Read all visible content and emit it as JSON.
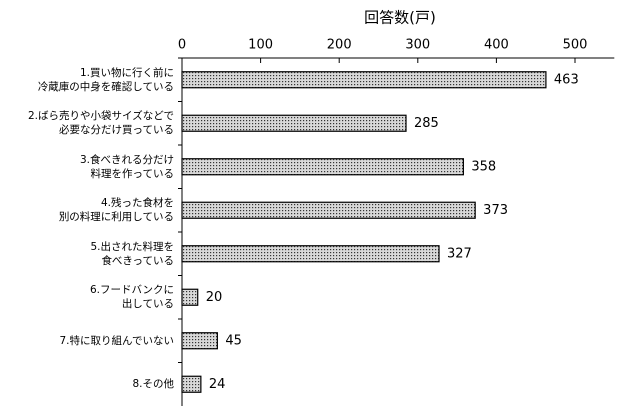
{
  "chart_data": {
    "type": "bar",
    "orientation": "horizontal",
    "x_label": "回答数(戸)",
    "categories": [
      "1.買い物に行く前に\n冷蔵庫の中身を確認している",
      "2.ばら売りや小袋サイズなどで\n必要な分だけ買っている",
      "3.食べきれる分だけ\n料理を作っている",
      "4.残った食材を\n別の料理に利用している",
      "5.出された料理を\n食べきっている",
      "6.フードバンクに\n出している",
      "7.特に取り組んでいない",
      "8.その他"
    ],
    "values": [
      463,
      285,
      358,
      373,
      327,
      20,
      45,
      24
    ],
    "color": "#9a9a9a",
    "xlim": [
      0,
      550
    ],
    "xticks": [
      0,
      100,
      200,
      300,
      400,
      500
    ]
  }
}
